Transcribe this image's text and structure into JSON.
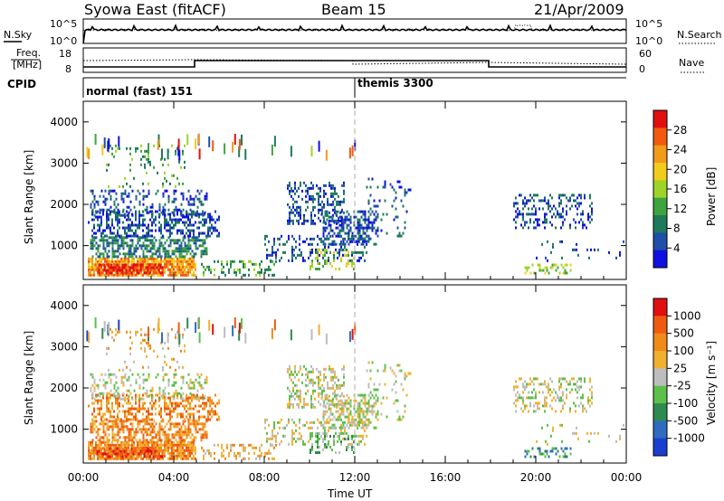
{
  "header": {
    "station": "Syowa East (fitACF)",
    "beam": "Beam 15",
    "date": "21/Apr/2009"
  },
  "noise_panel": {
    "left_label": "N.Sky",
    "right_label": "N.Search",
    "left_ticks": [
      "10^5",
      "10^0"
    ],
    "right_ticks": [
      "10^5",
      "10^0"
    ]
  },
  "freq_panel": {
    "left_label_1": "Freq.",
    "left_label_2": "[MHz]",
    "right_label": "Nave",
    "left_ticks": [
      "18",
      "8"
    ],
    "right_ticks": [
      "60",
      "0"
    ]
  },
  "cpid_panel": {
    "label": "CPID",
    "modes": [
      {
        "name": "normal (fast) 151",
        "start_hour": 0
      },
      {
        "name": "themis 3300",
        "start_hour": 12
      }
    ]
  },
  "chart_data": [
    {
      "type": "heatmap",
      "title": "",
      "xlabel": "Time UT",
      "ylabel": "Slant Range [km]",
      "xlim": [
        0,
        24
      ],
      "ylim": [
        180,
        4500
      ],
      "x_tick_labels": [
        "00:00",
        "04:00",
        "08:00",
        "12:00",
        "16:00",
        "20:00",
        "00:00"
      ],
      "y_tick_labels": [
        "1000",
        "2000",
        "3000",
        "4000"
      ],
      "colorbar": {
        "label": "Power [dB]",
        "ticks": [
          "4",
          "8",
          "12",
          "16",
          "20",
          "24",
          "28"
        ],
        "range": [
          0,
          30
        ]
      }
    },
    {
      "type": "heatmap",
      "title": "",
      "xlabel": "Time UT",
      "ylabel": "Slant Range [km]",
      "xlim": [
        0,
        24
      ],
      "ylim": [
        180,
        4500
      ],
      "x_tick_labels": [
        "00:00",
        "04:00",
        "08:00",
        "12:00",
        "16:00",
        "20:00",
        "00:00"
      ],
      "y_tick_labels": [
        "1000",
        "2000",
        "3000",
        "4000"
      ],
      "colorbar": {
        "label": "Velocity [m s⁻¹]",
        "ticks": [
          "1000",
          "500",
          "100",
          "25",
          "-25",
          "-100",
          "-500",
          "-1000"
        ]
      }
    }
  ],
  "colors": {
    "power_scale": [
      "#1010e0",
      "#1f4fa8",
      "#1f7a5a",
      "#3fa33f",
      "#9ed42a",
      "#f2cc1a",
      "#f29a1a",
      "#f25a10",
      "#e01010"
    ],
    "velocity_scale": [
      "#1a3fd0",
      "#2f6cc0",
      "#2f8a4f",
      "#5cc04a",
      "#bdbdbd",
      "#f0b030",
      "#f08a1a",
      "#f05a10",
      "#e01010"
    ],
    "ground_scatter": "#bdbdbd"
  }
}
